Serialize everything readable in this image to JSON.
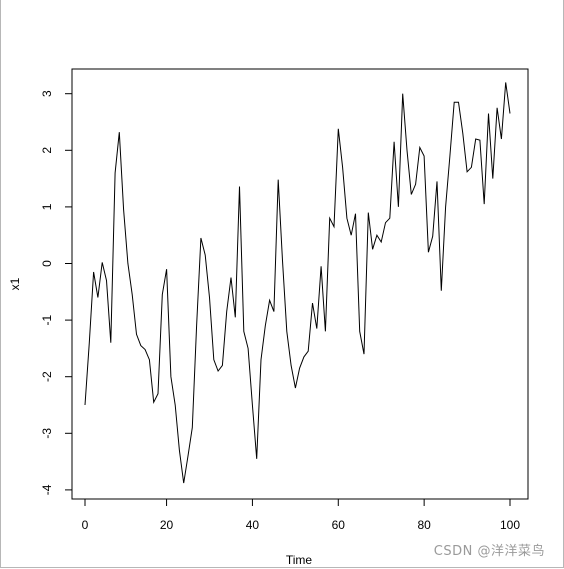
{
  "chart_data": {
    "type": "line",
    "xlabel": "Time",
    "ylabel": "x1",
    "xlim": [
      1,
      100
    ],
    "ylim": [
      -4,
      3.2
    ],
    "x_ticks": [
      0,
      20,
      40,
      60,
      80,
      100
    ],
    "y_ticks": [
      -4,
      -3,
      -2,
      -1,
      0,
      1,
      2,
      3
    ],
    "grid": false,
    "series": [
      {
        "color": "#000000",
        "x": [
          1,
          2,
          3,
          4,
          5,
          6,
          7,
          8,
          9,
          10,
          11,
          12,
          13,
          14,
          15,
          16,
          17,
          18,
          19,
          20,
          21,
          22,
          23,
          24,
          25,
          26,
          27,
          28,
          29,
          30,
          31,
          32,
          33,
          34,
          35,
          36,
          37,
          38,
          39,
          40,
          41,
          42,
          43,
          44,
          45,
          46,
          47,
          48,
          49,
          50,
          51,
          52,
          53,
          54,
          55,
          56,
          57,
          58,
          59,
          60,
          61,
          62,
          63,
          64,
          65,
          66,
          67,
          68,
          69,
          70,
          71,
          72,
          73,
          74,
          75,
          76,
          77,
          78,
          79,
          80,
          81,
          82,
          83,
          84,
          85,
          86,
          87,
          88,
          89,
          90,
          91,
          92,
          93,
          94,
          95,
          96,
          97,
          98,
          99,
          100
        ],
        "values": [
          -2.5,
          -1.4,
          -0.15,
          -0.6,
          0.02,
          -0.3,
          -1.4,
          1.6,
          2.32,
          0.95,
          0.0,
          -0.55,
          -1.25,
          -1.45,
          -1.52,
          -1.7,
          -2.45,
          -2.3,
          -0.55,
          -0.1,
          -2.0,
          -2.5,
          -3.3,
          -3.88,
          -3.4,
          -2.9,
          -1.1,
          0.45,
          0.15,
          -0.6,
          -1.7,
          -1.9,
          -1.8,
          -0.85,
          -0.25,
          -0.95,
          1.36,
          -1.2,
          -1.5,
          -2.5,
          -3.45,
          -1.7,
          -1.1,
          -0.65,
          -0.85,
          1.48,
          0.05,
          -1.2,
          -1.8,
          -2.2,
          -1.85,
          -1.65,
          -1.55,
          -0.7,
          -1.15,
          -0.05,
          -1.2,
          0.8,
          0.65,
          2.38,
          1.7,
          0.8,
          0.5,
          0.88,
          -1.2,
          -1.6,
          0.9,
          0.25,
          0.5,
          0.38,
          0.72,
          0.8,
          2.15,
          1.0,
          3.0,
          2.0,
          1.22,
          1.4,
          2.05,
          1.9,
          0.2,
          0.48,
          1.45,
          -0.48,
          1.0,
          1.9,
          2.85,
          2.85,
          2.3,
          1.62,
          1.7,
          2.2,
          2.18,
          1.05,
          2.65,
          1.5,
          2.75,
          2.2,
          3.2,
          2.65
        ]
      }
    ]
  },
  "watermark": "CSDN @洋洋菜鸟"
}
